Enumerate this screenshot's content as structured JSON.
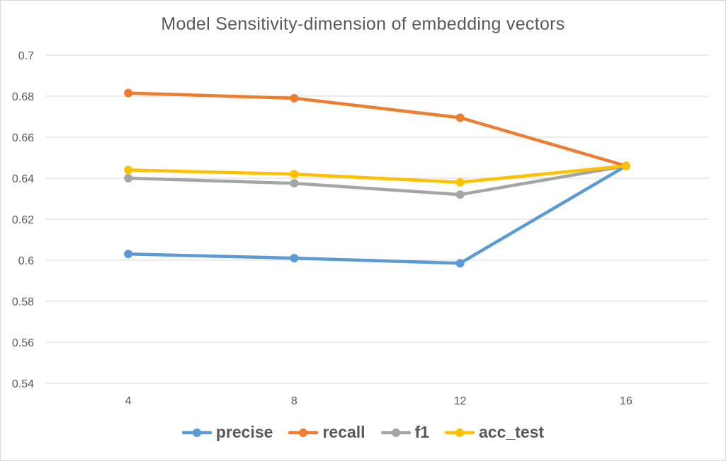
{
  "chart_data": {
    "type": "line",
    "title": "Model Sensitivity-dimension of embedding vectors",
    "xlabel": "",
    "ylabel": "",
    "categories": [
      "4",
      "8",
      "12",
      "16"
    ],
    "ylim": [
      0.54,
      0.7
    ],
    "yticks": [
      "0.54",
      "0.56",
      "0.58",
      "0.6",
      "0.62",
      "0.64",
      "0.66",
      "0.68",
      "0.7"
    ],
    "grid": true,
    "legend_position": "bottom",
    "series": [
      {
        "name": "precise",
        "color": "#5b9bd5",
        "values": [
          0.603,
          0.601,
          0.5985,
          0.646
        ]
      },
      {
        "name": "recall",
        "color": "#ed7d31",
        "values": [
          0.6815,
          0.679,
          0.6695,
          0.646
        ]
      },
      {
        "name": "f1",
        "color": "#a5a5a5",
        "values": [
          0.64,
          0.6375,
          0.632,
          0.646
        ]
      },
      {
        "name": "acc_test",
        "color": "#ffc000",
        "values": [
          0.644,
          0.642,
          0.638,
          0.646
        ]
      }
    ]
  }
}
